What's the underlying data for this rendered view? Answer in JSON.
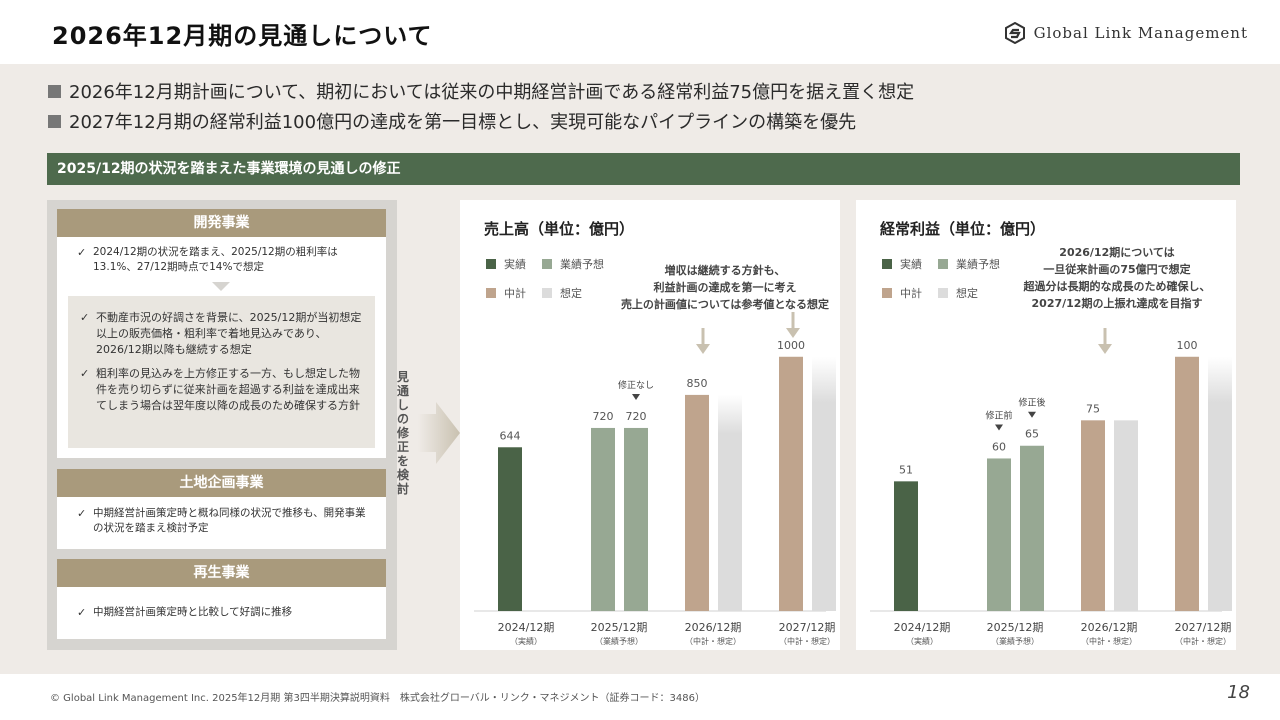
{
  "header": {
    "title": "2026年12月期の見通しについて",
    "logo_text": "Global Link Management"
  },
  "bullets": [
    "2026年12月期計画について、期初においては従来の中期経営計画である経常利益75億円を据え置く想定",
    "2027年12月期の経常利益100億円の達成を第一目標とし、実現可能なパイプラインの構築を優先"
  ],
  "section_title": "2025/12期の状況を踏まえた事業環境の見通しの修正",
  "left": {
    "dev": {
      "title": "開発事業",
      "item": "2024/12期の状況を踏まえ、2025/12期の粗利率は13.1%、27/12期時点で14%で想定",
      "sub_items": [
        "不動産市況の好調さを背景に、2025/12期が当初想定以上の販売価格・粗利率で着地見込みであり、2026/12期以降も継続する想定",
        "粗利率の見込みを上方修正する一方、もし想定した物件を売り切らずに従来計画を超過する利益を達成出来てしまう場合は翌年度以降の成長のため確保する方針"
      ]
    },
    "land": {
      "title": "土地企画事業",
      "item": "中期経営計画策定時と概ね同様の状況で推移も、開発事業の状況を踏まえ検討予定"
    },
    "renew": {
      "title": "再生事業",
      "item": "中期経営計画策定時と比較して好調に推移"
    }
  },
  "arrow_label": "見通しの修正を検討",
  "legend": {
    "actual": "実績",
    "forecast": "業績予想",
    "plan": "中計",
    "assumed": "想定"
  },
  "colors": {
    "actual": "#4a6347",
    "forecast": "#97a893",
    "plan": "#bfa48d",
    "assumed": "#dcdcdc"
  },
  "chart_data": [
    {
      "type": "bar",
      "title": "売上高（単位：億円）",
      "categories": [
        "2024/12期",
        "2025/12期",
        "2026/12期",
        "2027/12期"
      ],
      "category_sublabels": [
        "（実績）",
        "（業績予想）",
        "（中計・想定）",
        "（中計・想定）"
      ],
      "bars": [
        {
          "category": 0,
          "kind": "actual",
          "value": 644,
          "label": "644"
        },
        {
          "category": 1,
          "kind": "forecast",
          "value": 720,
          "label": "720"
        },
        {
          "category": 1,
          "kind": "forecast",
          "value": 720,
          "label": "720",
          "annotation": "修正なし"
        },
        {
          "category": 2,
          "kind": "plan",
          "value": 850,
          "label": "850"
        },
        {
          "category": 2,
          "kind": "assumed",
          "value": 850,
          "label": "",
          "fade": true
        },
        {
          "category": 3,
          "kind": "plan",
          "value": 1000,
          "label": "1000"
        },
        {
          "category": 3,
          "kind": "assumed",
          "value": 1000,
          "label": "",
          "fade": true
        }
      ],
      "ylim": [
        0,
        1180
      ],
      "note": [
        "増収は継続する方針も、",
        "利益計画の達成を第一に考え",
        "売上の計画値については参考値となる想定"
      ]
    },
    {
      "type": "bar",
      "title": "経常利益（単位：億円）",
      "categories": [
        "2024/12期",
        "2025/12期",
        "2026/12期",
        "2027/12期"
      ],
      "category_sublabels": [
        "（実績）",
        "（業績予想）",
        "（中計・想定）",
        "（中計・想定）"
      ],
      "bars": [
        {
          "category": 0,
          "kind": "actual",
          "value": 51,
          "label": "51"
        },
        {
          "category": 1,
          "kind": "forecast",
          "value": 60,
          "label": "60",
          "annotation": "修正前"
        },
        {
          "category": 1,
          "kind": "forecast",
          "value": 65,
          "label": "65",
          "annotation": "修正後"
        },
        {
          "category": 2,
          "kind": "plan",
          "value": 75,
          "label": "75"
        },
        {
          "category": 2,
          "kind": "assumed",
          "value": 75,
          "label": ""
        },
        {
          "category": 3,
          "kind": "plan",
          "value": 100,
          "label": "100"
        },
        {
          "category": 3,
          "kind": "assumed",
          "value": 100,
          "label": "",
          "fade": true
        }
      ],
      "ylim": [
        0,
        118
      ],
      "note": [
        "2026/12期については",
        "一旦従来計画の75億円で想定",
        "超過分は長期的な成長のため確保し、",
        "2027/12期の上振れ達成を目指す"
      ]
    }
  ],
  "footer": {
    "text": "© Global Link Management Inc. 2025年12月期 第3四半期決算説明資料　株式会社グローバル・リンク・マネジメント（証券コード：3486）",
    "page": "18"
  }
}
